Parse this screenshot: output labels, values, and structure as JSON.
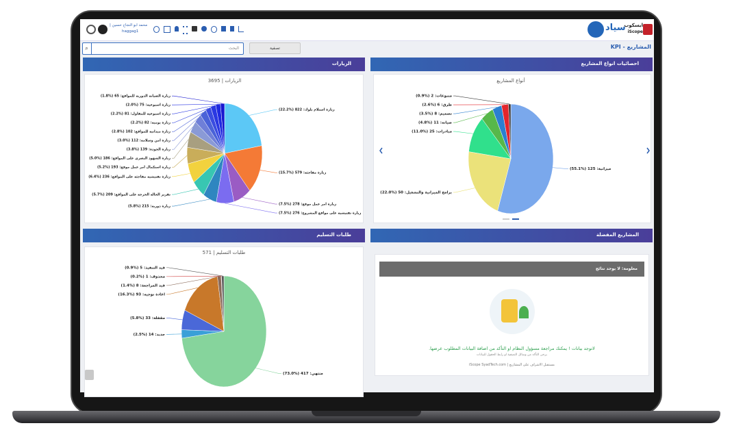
{
  "header": {
    "brand_ar": "ايسكوب",
    "brand_en": "iScope",
    "company": "سياد",
    "user_name": "محمد ابو النجاح حسين |",
    "user_id": "haggag1",
    "breadcrumb": "KPI - المشاريع"
  },
  "toolbar": {
    "search_placeholder": "البحث",
    "filter_button": "تصفية"
  },
  "panels": [
    "احصائيات انواع المشاريع",
    "الزيارات",
    "المشاريع المفضلة",
    "طلبات التسليم"
  ],
  "empty_state": {
    "alert": "معلومة: لا يوجد نتائج",
    "message": "لاتوجد بيانات ! يمكنك مراجعة مسؤول النظام او التأكد من اضافة البيانات المطلوب عرضها.",
    "hint": "يرجى التأكد من وسائل التصفية او رابط الحقول للبيانات",
    "footer": "مستقبل الاشراف على المشاريع | iScope SyadTech.com"
  },
  "chart_data": [
    {
      "type": "pie",
      "title": "أنواع المشاريع",
      "values": [
        125,
        50,
        25,
        11,
        8,
        6,
        2
      ],
      "value_labels": [
        "ميزانية: 125 (%55.1)",
        "برامج الميزانية والتشغيل: 50 (%22.0)",
        "مبادرات: 25 (%11.0)",
        "صيانه: 11 (%4.8)",
        "تصميم: 8 (%3.5)",
        "طرق: 6 (%2.6)",
        "متنوعات: 2 (%0.9)"
      ],
      "colors": [
        "#7aa8ec",
        "#ebe27a",
        "#30e08c",
        "#57b84a",
        "#2b7fd0",
        "#e3262c",
        "#3a3a3a"
      ]
    },
    {
      "type": "pie",
      "title": "الزيارات | 3695",
      "values": [
        822,
        579,
        278,
        276,
        215,
        209,
        236,
        193,
        186,
        139,
        112,
        102,
        82,
        81,
        75,
        65
      ],
      "value_labels": [
        "زيارة استلام بلوك: 822 (%22.2)",
        "زيارة مفاجئة: 579 (%15.7)",
        "زيارة امر عمل موقع: 278 (%7.5)",
        "زيارة تفتيشية على مواقع المشروع: 276 (%7.5)",
        "زيارة دورية: 215 (%5.8)",
        "تقرير الحالة الحرجة على المواقع: 209 (%5.7)",
        "زيارة تفتيشية مفاجئة على المواقع: 236 (%6.4)",
        "زيارة استكمال امر عمل موقع: 193 (%5.2)",
        "زيارة الشهود البصري على المواقع: 186 (%5.0)",
        "زيارة الجودة: 139 (%3.8)",
        "زيارة امن وسلامة: 112 (%3.0)",
        "زيارة ميدانية للمواقع: 102 (%2.8)",
        "زيارة يومية: 82 (%2.2)",
        "زيارة اسبوعية للمقاول: 81 (%2.2)",
        "زيارة اسبوعية: 75 (%2.0)",
        "زيارة الصيانة الدورية للمواقع: 65 (%1.8)"
      ],
      "colors": [
        "#5cc8f6",
        "#f47a36",
        "#9a5cc4",
        "#7b6cf0",
        "#2f86c0",
        "#38c6b2",
        "#f2d23e",
        "#c9ad5a",
        "#a89f80",
        "#8a9ad6",
        "#6f7fd8",
        "#4a62d8",
        "#3a4ce0",
        "#2a38e2",
        "#1f2ae0",
        "#1818d0"
      ]
    },
    {
      "type": "pie",
      "title": "طلبات التسليم | 571",
      "values": [
        417,
        14,
        33,
        93,
        8,
        1,
        5
      ],
      "value_labels": [
        "منتهي: 417 (%73.0)",
        "جديد: 14 (%2.5)",
        "مقفلة: 33 (%5.8)",
        "اعادة توجيه: 93 (%16.3)",
        "قيد المراجعة: 8 (%1.4)",
        "محذوف: 1 (%0.2)",
        "قيد التنفيذ: 5 (%0.9)"
      ],
      "colors": [
        "#86d49c",
        "#3aa0d8",
        "#4a68d8",
        "#c8782a",
        "#8a6a5a",
        "#d04040",
        "#555555"
      ]
    }
  ]
}
